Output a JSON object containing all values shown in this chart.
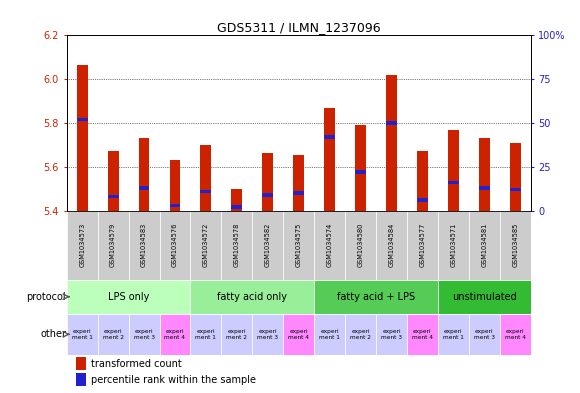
{
  "title": "GDS5311 / ILMN_1237096",
  "samples": [
    "GSM1034573",
    "GSM1034579",
    "GSM1034583",
    "GSM1034576",
    "GSM1034572",
    "GSM1034578",
    "GSM1034582",
    "GSM1034575",
    "GSM1034574",
    "GSM1034580",
    "GSM1034584",
    "GSM1034577",
    "GSM1034571",
    "GSM1034581",
    "GSM1034585"
  ],
  "transformed_count": [
    6.065,
    5.67,
    5.73,
    5.63,
    5.7,
    5.5,
    5.665,
    5.655,
    5.87,
    5.79,
    6.02,
    5.67,
    5.77,
    5.73,
    5.71
  ],
  "percentile_rank": [
    52,
    8,
    13,
    3,
    11,
    2,
    9,
    10,
    42,
    22,
    50,
    6,
    16,
    13,
    12
  ],
  "ymin": 5.4,
  "ymax": 6.2,
  "y_ticks_left": [
    5.4,
    5.6,
    5.8,
    6.0,
    6.2
  ],
  "y_ticks_right": [
    0,
    25,
    50,
    75,
    100
  ],
  "protocol_groups": [
    {
      "label": "LPS only",
      "indices": [
        0,
        1,
        2,
        3
      ],
      "color": "#bbffbb"
    },
    {
      "label": "fatty acid only",
      "indices": [
        4,
        5,
        6,
        7
      ],
      "color": "#99ee99"
    },
    {
      "label": "fatty acid + LPS",
      "indices": [
        8,
        9,
        10,
        11
      ],
      "color": "#55cc55"
    },
    {
      "label": "unstimulated",
      "indices": [
        12,
        13,
        14
      ],
      "color": "#33bb33"
    }
  ],
  "other_labels": [
    "experi\nment 1",
    "experi\nment 2",
    "experi\nment 3",
    "experi\nment 4",
    "experi\nment 1",
    "experi\nment 2",
    "experi\nment 3",
    "experi\nment 4",
    "experi\nment 1",
    "experi\nment 2",
    "experi\nment 3",
    "experi\nment 4",
    "experi\nment 1",
    "experi\nment 3",
    "experi\nment 4"
  ],
  "other_colors": [
    "#ccccff",
    "#ccccff",
    "#ccccff",
    "#ff88ff",
    "#ccccff",
    "#ccccff",
    "#ccccff",
    "#ff88ff",
    "#ccccff",
    "#ccccff",
    "#ccccff",
    "#ff88ff",
    "#ccccff",
    "#ccccff",
    "#ff88ff"
  ],
  "bar_color_red": "#cc2200",
  "bar_color_blue": "#2222cc",
  "bg_color": "#ffffff",
  "sample_bg": "#cccccc",
  "left_axis_color": "#cc2200",
  "right_axis_color": "#2222cc",
  "grid_lines": [
    5.6,
    5.8,
    6.0
  ]
}
